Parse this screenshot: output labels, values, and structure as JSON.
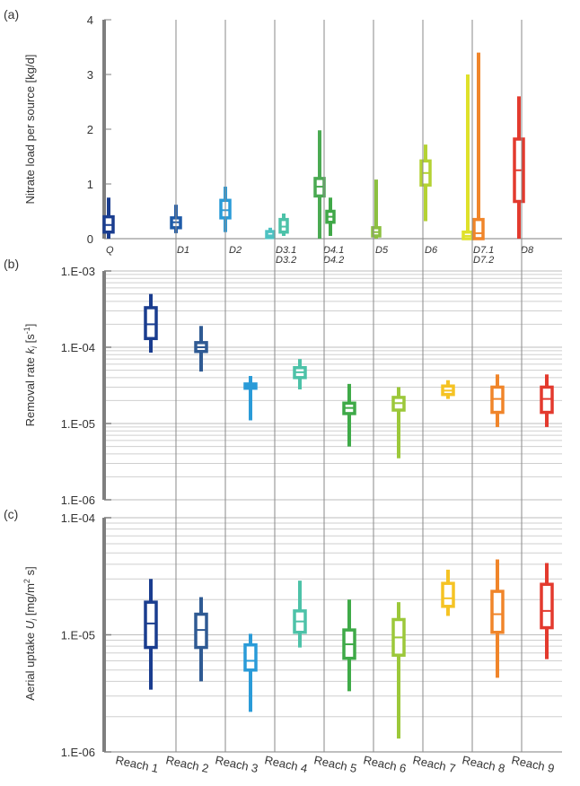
{
  "chart_data": [
    {
      "panel_label": "(a)",
      "type": "box",
      "ylabel": "Nitrate load per source [kg/d]",
      "ylim": [
        0,
        4
      ],
      "yscale": "linear",
      "yticks": [
        "0",
        "1",
        "2",
        "3",
        "4"
      ],
      "xlabels": [
        "Q",
        "D1",
        "D2",
        "D3.1",
        "D3.2",
        "D4.1",
        "D4.2",
        "D5",
        "D6",
        "D7.1",
        "D7.2",
        "D8"
      ],
      "boxes": [
        {
          "name": "Q",
          "color": "#1a3d8f",
          "min": 0.0,
          "q1": 0.12,
          "median": 0.25,
          "q3": 0.4,
          "max": 0.75
        },
        {
          "name": "D1",
          "color": "#1f5ba8",
          "min": 0.1,
          "q1": 0.2,
          "median": 0.3,
          "q3": 0.38,
          "max": 0.62
        },
        {
          "name": "D2",
          "color": "#2a9bd8",
          "min": 0.12,
          "q1": 0.38,
          "median": 0.52,
          "q3": 0.7,
          "max": 0.95
        },
        {
          "name": "D3.1",
          "color": "#4dc2c2",
          "min": 0.0,
          "q1": 0.02,
          "median": 0.06,
          "q3": 0.13,
          "max": 0.2
        },
        {
          "name": "D3.2",
          "color": "#4dc2a8",
          "min": 0.05,
          "q1": 0.12,
          "median": 0.22,
          "q3": 0.35,
          "max": 0.46
        },
        {
          "name": "D4.1",
          "color": "#4aaa52",
          "min": 0.0,
          "q1": 0.78,
          "median": 0.95,
          "q3": 1.1,
          "max": 1.98
        },
        {
          "name": "D4.2",
          "color": "#40a848",
          "min": 0.05,
          "q1": 0.3,
          "median": 0.4,
          "q3": 0.5,
          "max": 0.75
        },
        {
          "name": "D5",
          "color": "#8cc040",
          "min": 0.0,
          "q1": 0.05,
          "median": 0.12,
          "q3": 0.2,
          "max": 1.08
        },
        {
          "name": "D6",
          "color": "#b4d234",
          "min": 0.32,
          "q1": 0.98,
          "median": 1.2,
          "q3": 1.42,
          "max": 1.72
        },
        {
          "name": "D7.1",
          "color": "#dfe12a",
          "min": 0.0,
          "q1": 0.0,
          "median": 0.05,
          "q3": 0.12,
          "max": 3.0
        },
        {
          "name": "D7.2",
          "color": "#f0852a",
          "min": 0.0,
          "q1": 0.0,
          "median": 0.1,
          "q3": 0.35,
          "max": 3.4
        },
        {
          "name": "D8",
          "color": "#e33a2e",
          "min": 0.0,
          "q1": 0.68,
          "median": 1.25,
          "q3": 1.82,
          "max": 2.6
        }
      ]
    },
    {
      "panel_label": "(b)",
      "type": "box",
      "ylabel": "Removal rate k_i [s^-1]",
      "ylim": [
        1e-06,
        0.001
      ],
      "yscale": "log",
      "yticks": [
        "1.E-06",
        "1.E-05",
        "1.E-04",
        "1.E-03"
      ],
      "categories": [
        "Reach 1",
        "Reach 2",
        "Reach 3",
        "Reach 4",
        "Reach 5",
        "Reach 6",
        "Reach 7",
        "Reach 8",
        "Reach 9"
      ],
      "boxes": [
        {
          "name": "Reach 1",
          "color": "#1a3d8f",
          "min": 8.5e-05,
          "q1": 0.00013,
          "median": 0.0002,
          "q3": 0.00033,
          "max": 0.0005
        },
        {
          "name": "Reach 2",
          "color": "#2f5a93",
          "min": 4.8e-05,
          "q1": 8.8e-05,
          "median": 0.0001,
          "q3": 0.000115,
          "max": 0.00019
        },
        {
          "name": "Reach 3",
          "color": "#2a9bd8",
          "min": 1.1e-05,
          "q1": 2.9e-05,
          "median": 3.1e-05,
          "q3": 3.3e-05,
          "max": 4.2e-05
        },
        {
          "name": "Reach 4",
          "color": "#4dc2a8",
          "min": 2.8e-05,
          "q1": 4e-05,
          "median": 4.7e-05,
          "q3": 5.4e-05,
          "max": 7e-05
        },
        {
          "name": "Reach 5",
          "color": "#3faa48",
          "min": 5e-06,
          "q1": 1.35e-05,
          "median": 1.6e-05,
          "q3": 1.85e-05,
          "max": 3.3e-05
        },
        {
          "name": "Reach 6",
          "color": "#9cc83a",
          "min": 3.5e-06,
          "q1": 1.5e-05,
          "median": 1.85e-05,
          "q3": 2.2e-05,
          "max": 3e-05
        },
        {
          "name": "Reach 7",
          "color": "#f5c324",
          "min": 2.1e-05,
          "q1": 2.4e-05,
          "median": 2.7e-05,
          "q3": 3.1e-05,
          "max": 3.7e-05
        },
        {
          "name": "Reach 8",
          "color": "#f0852a",
          "min": 9e-06,
          "q1": 1.4e-05,
          "median": 2.1e-05,
          "q3": 3e-05,
          "max": 4.4e-05
        },
        {
          "name": "Reach 9",
          "color": "#e33a2e",
          "min": 9e-06,
          "q1": 1.4e-05,
          "median": 2.1e-05,
          "q3": 3e-05,
          "max": 4.4e-05
        }
      ]
    },
    {
      "panel_label": "(c)",
      "type": "box",
      "ylabel": "Aerial uptake U_i [mg/m^2 s]",
      "ylim": [
        1e-06,
        0.0001
      ],
      "yscale": "log",
      "yticks": [
        "1.E-06",
        "1.E-05",
        "1.E-04"
      ],
      "categories": [
        "Reach 1",
        "Reach 2",
        "Reach 3",
        "Reach 4",
        "Reach 5",
        "Reach 6",
        "Reach 7",
        "Reach 8",
        "Reach 9"
      ],
      "boxes": [
        {
          "name": "Reach 1",
          "color": "#1a3d8f",
          "min": 3.4e-06,
          "q1": 7.8e-06,
          "median": 1.25e-05,
          "q3": 1.9e-05,
          "max": 3e-05
        },
        {
          "name": "Reach 2",
          "color": "#2f5a93",
          "min": 4e-06,
          "q1": 7.8e-06,
          "median": 1.1e-05,
          "q3": 1.5e-05,
          "max": 2.1e-05
        },
        {
          "name": "Reach 3",
          "color": "#2a9bd8",
          "min": 2.2e-06,
          "q1": 5e-06,
          "median": 6e-06,
          "q3": 8.2e-06,
          "max": 1.02e-05
        },
        {
          "name": "Reach 4",
          "color": "#4dc2a8",
          "min": 7.8e-06,
          "q1": 1.05e-05,
          "median": 1.3e-05,
          "q3": 1.6e-05,
          "max": 2.9e-05
        },
        {
          "name": "Reach 5",
          "color": "#3faa48",
          "min": 3.3e-06,
          "q1": 6.3e-06,
          "median": 8.3e-06,
          "q3": 1.1e-05,
          "max": 2e-05
        },
        {
          "name": "Reach 6",
          "color": "#9cc83a",
          "min": 1.3e-06,
          "q1": 6.7e-06,
          "median": 9.5e-06,
          "q3": 1.35e-05,
          "max": 1.9e-05
        },
        {
          "name": "Reach 7",
          "color": "#f5c324",
          "min": 1.45e-05,
          "q1": 1.75e-05,
          "median": 2.05e-05,
          "q3": 2.75e-05,
          "max": 3.6e-05
        },
        {
          "name": "Reach 8",
          "color": "#f0852a",
          "min": 4.3e-06,
          "q1": 1.05e-05,
          "median": 1.5e-05,
          "q3": 2.35e-05,
          "max": 4.4e-05
        },
        {
          "name": "Reach 9",
          "color": "#e33a2e",
          "min": 6.2e-06,
          "q1": 1.15e-05,
          "median": 1.6e-05,
          "q3": 2.7e-05,
          "max": 4.1e-05
        }
      ]
    }
  ]
}
